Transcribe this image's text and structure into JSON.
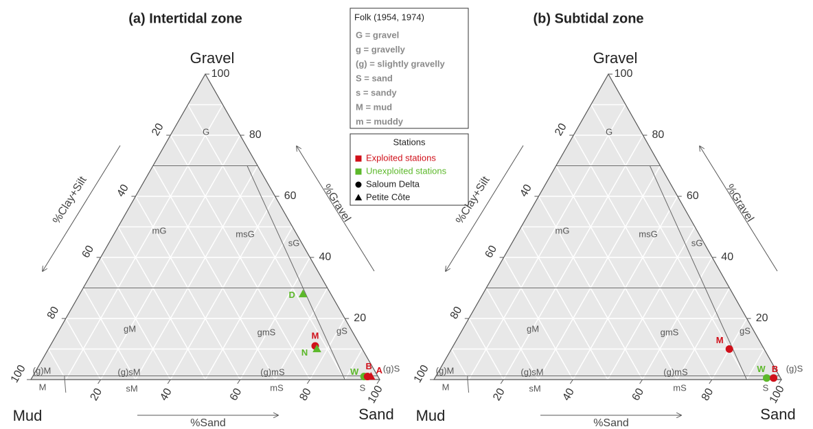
{
  "chart_data": [
    {
      "type": "ternary",
      "title": "(a)  Intertidal zone",
      "vertex_labels": {
        "top": "Gravel",
        "left": "Mud",
        "right": "Sand"
      },
      "axis_labels": {
        "left": "%Clay+Silt",
        "right": "%Gravel",
        "bottom": "%Sand"
      },
      "gravel_ticks": [
        20,
        40,
        60,
        80,
        100
      ],
      "clay_silt_ticks": [
        20,
        40,
        60,
        80,
        100
      ],
      "sand_ticks": [
        20,
        40,
        60,
        80,
        100
      ],
      "regions": [
        "G",
        "mG",
        "msG",
        "sG",
        "gM",
        "gmS",
        "gS",
        "(g)M",
        "(g)sM",
        "(g)mS",
        "(g)S",
        "M",
        "sM",
        "mS",
        "S"
      ],
      "points": [
        {
          "label": "D",
          "color": "#5cb82a",
          "shape": "triangle",
          "gravel": 28,
          "sand": 64,
          "mud": 8
        },
        {
          "label": "M",
          "color": "#d0101a",
          "shape": "circle",
          "gravel": 11,
          "sand": 76,
          "mud": 13
        },
        {
          "label": "N",
          "color": "#5cb82a",
          "shape": "triangle",
          "gravel": 10,
          "sand": 77,
          "mud": 13
        },
        {
          "label": "W",
          "color": "#5cb82a",
          "shape": "circle",
          "gravel": 1,
          "sand": 95,
          "mud": 4
        },
        {
          "label": "B",
          "color": "#d0101a",
          "shape": "circle",
          "gravel": 1,
          "sand": 96,
          "mud": 3
        },
        {
          "label": "A",
          "color": "#d0101a",
          "shape": "triangle",
          "gravel": 1,
          "sand": 97,
          "mud": 2
        }
      ]
    },
    {
      "type": "ternary",
      "title": "(b)  Subtidal zone",
      "vertex_labels": {
        "top": "Gravel",
        "left": "Mud",
        "right": "Sand"
      },
      "axis_labels": {
        "left": "%Clay+Silt",
        "right": "%Gravel",
        "bottom": "%Sand"
      },
      "gravel_ticks": [
        20,
        40,
        60,
        80,
        100
      ],
      "clay_silt_ticks": [
        20,
        40,
        60,
        80,
        100
      ],
      "sand_ticks": [
        20,
        40,
        60,
        80,
        100
      ],
      "regions": [
        "G",
        "mG",
        "msG",
        "sG",
        "gM",
        "gmS",
        "gS",
        "(g)M",
        "(g)sM",
        "(g)mS",
        "(g)S",
        "M",
        "sM",
        "mS",
        "S"
      ],
      "points": [
        {
          "label": "M",
          "color": "#d0101a",
          "shape": "circle",
          "gravel": 10,
          "sand": 80,
          "mud": 10
        },
        {
          "label": "W",
          "color": "#5cb82a",
          "shape": "circle",
          "gravel": 0.5,
          "sand": 95.5,
          "mud": 4
        },
        {
          "label": "B",
          "color": "#d0101a",
          "shape": "circle",
          "gravel": 0.5,
          "sand": 97.5,
          "mud": 2
        }
      ]
    }
  ],
  "legends": {
    "folk": {
      "title": "Folk (1954, 1974)",
      "entries": [
        "G = gravel",
        "g = gravelly",
        "(g) = slightly gravelly",
        "S = sand",
        "s = sandy",
        "M = mud",
        "m = muddy"
      ]
    },
    "stations": {
      "title": "Stations",
      "items": [
        {
          "label": "Exploited stations",
          "color": "#d0101a",
          "marker": "square"
        },
        {
          "label": "Unexploited stations",
          "color": "#5cb82a",
          "marker": "square"
        },
        {
          "label": "Saloum Delta",
          "color": "#000000",
          "marker": "circle"
        },
        {
          "label": "Petite Côte",
          "color": "#000000",
          "marker": "triangle"
        }
      ]
    }
  }
}
